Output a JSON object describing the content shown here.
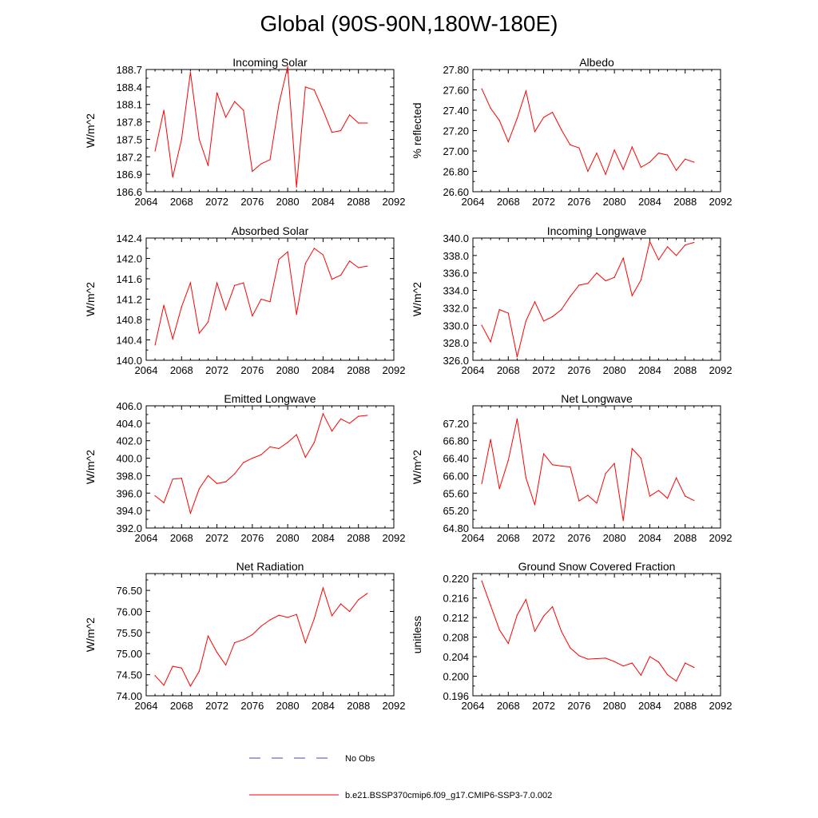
{
  "title": "Global (90S-90N,180W-180E)",
  "colors": {
    "model": "#ff0000",
    "obs": "#4a4aa8",
    "axis": "#000000"
  },
  "legend": {
    "obs_label": "No Obs",
    "model_label": "b.e21.BSSP370cmip6.f09_g17.CMIP6-SSP3-7.0.002"
  },
  "chart_data": [
    {
      "type": "line",
      "title": "Incoming Solar",
      "ylabel": "W/m^2",
      "xlim": [
        2064,
        2092
      ],
      "ylim": [
        186.6,
        188.7
      ],
      "xticks": [
        "2064",
        "2068",
        "2072",
        "2076",
        "2080",
        "2084",
        "2088",
        "2092"
      ],
      "yticks": [
        "186.6",
        "186.9",
        "187.2",
        "187.5",
        "187.8",
        "188.1",
        "188.4",
        "188.7"
      ],
      "series": [
        {
          "x": [
            2065,
            2066,
            2067,
            2068,
            2069,
            2070,
            2071,
            2072,
            2073,
            2074,
            2075,
            2076,
            2077,
            2078,
            2079,
            2080,
            2081,
            2082,
            2083,
            2084,
            2085,
            2086,
            2087,
            2088,
            2089
          ],
          "values": [
            187.3,
            188.0,
            186.85,
            187.5,
            188.65,
            187.5,
            187.05,
            188.3,
            187.88,
            188.15,
            188.0,
            186.95,
            187.08,
            187.15,
            188.1,
            188.75,
            186.68,
            188.4,
            188.35,
            188.0,
            187.62,
            187.65,
            187.92,
            187.78,
            187.78
          ]
        }
      ]
    },
    {
      "type": "line",
      "title": "Albedo",
      "ylabel": "% reflected",
      "xlim": [
        2064,
        2092
      ],
      "ylim": [
        26.6,
        27.8
      ],
      "xticks": [
        "2064",
        "2068",
        "2072",
        "2076",
        "2080",
        "2084",
        "2088",
        "2092"
      ],
      "yticks": [
        "26.60",
        "26.80",
        "27.00",
        "27.20",
        "27.40",
        "27.60",
        "27.80"
      ],
      "series": [
        {
          "x": [
            2065,
            2066,
            2067,
            2068,
            2069,
            2070,
            2071,
            2072,
            2073,
            2074,
            2075,
            2076,
            2077,
            2078,
            2079,
            2080,
            2081,
            2082,
            2083,
            2084,
            2085,
            2086,
            2087,
            2088,
            2089
          ],
          "values": [
            27.61,
            27.42,
            27.3,
            27.09,
            27.32,
            27.59,
            27.19,
            27.33,
            27.38,
            27.21,
            27.06,
            27.03,
            26.8,
            26.98,
            26.77,
            27.01,
            26.82,
            27.04,
            26.84,
            26.89,
            26.98,
            26.96,
            26.81,
            26.92,
            26.89
          ]
        }
      ]
    },
    {
      "type": "line",
      "title": "Absorbed Solar",
      "ylabel": "W/m^2",
      "xlim": [
        2064,
        2092
      ],
      "ylim": [
        140.0,
        142.4
      ],
      "xticks": [
        "2064",
        "2068",
        "2072",
        "2076",
        "2080",
        "2084",
        "2088",
        "2092"
      ],
      "yticks": [
        "140.0",
        "140.4",
        "140.8",
        "141.2",
        "141.6",
        "142.0",
        "142.4"
      ],
      "series": [
        {
          "x": [
            2065,
            2066,
            2067,
            2068,
            2069,
            2070,
            2071,
            2072,
            2073,
            2074,
            2075,
            2076,
            2077,
            2078,
            2079,
            2080,
            2081,
            2082,
            2083,
            2084,
            2085,
            2086,
            2087,
            2088,
            2089
          ],
          "values": [
            140.3,
            141.08,
            140.42,
            141.05,
            141.52,
            140.53,
            140.75,
            141.52,
            140.99,
            141.47,
            141.52,
            140.87,
            141.2,
            141.15,
            141.98,
            142.13,
            140.9,
            141.9,
            142.2,
            142.07,
            141.59,
            141.67,
            141.95,
            141.82,
            141.85
          ]
        }
      ]
    },
    {
      "type": "line",
      "title": "Incoming Longwave",
      "ylabel": "W/m^2",
      "xlim": [
        2064,
        2092
      ],
      "ylim": [
        326.0,
        340.0
      ],
      "xticks": [
        "2064",
        "2068",
        "2072",
        "2076",
        "2080",
        "2084",
        "2088",
        "2092"
      ],
      "yticks": [
        "326.0",
        "328.0",
        "330.0",
        "332.0",
        "334.0",
        "336.0",
        "338.0",
        "340.0"
      ],
      "series": [
        {
          "x": [
            2065,
            2066,
            2067,
            2068,
            2069,
            2070,
            2071,
            2072,
            2073,
            2074,
            2075,
            2076,
            2077,
            2078,
            2079,
            2080,
            2081,
            2082,
            2083,
            2084,
            2085,
            2086,
            2087,
            2088,
            2089
          ],
          "values": [
            330.0,
            328.1,
            331.8,
            331.4,
            326.4,
            330.5,
            332.7,
            330.5,
            331.0,
            331.8,
            333.3,
            334.6,
            334.8,
            336.0,
            335.1,
            335.5,
            337.7,
            333.4,
            335.2,
            339.6,
            337.5,
            339.0,
            338.0,
            339.2,
            339.5
          ]
        }
      ]
    },
    {
      "type": "line",
      "title": "Emitted Longwave",
      "ylabel": "W/m^2",
      "xlim": [
        2064,
        2092
      ],
      "ylim": [
        392.0,
        406.0
      ],
      "xticks": [
        "2064",
        "2068",
        "2072",
        "2076",
        "2080",
        "2084",
        "2088",
        "2092"
      ],
      "yticks": [
        "392.0",
        "394.0",
        "396.0",
        "398.0",
        "400.0",
        "402.0",
        "404.0",
        "406.0"
      ],
      "series": [
        {
          "x": [
            2065,
            2066,
            2067,
            2068,
            2069,
            2070,
            2071,
            2072,
            2073,
            2074,
            2075,
            2076,
            2077,
            2078,
            2079,
            2080,
            2081,
            2082,
            2083,
            2084,
            2085,
            2086,
            2087,
            2088,
            2089
          ],
          "values": [
            395.7,
            394.9,
            397.6,
            397.7,
            393.7,
            396.5,
            398.0,
            397.1,
            397.3,
            398.2,
            399.5,
            400.0,
            400.4,
            401.3,
            401.1,
            401.8,
            402.7,
            400.1,
            401.8,
            405.1,
            403.1,
            404.5,
            404.0,
            404.8,
            404.9
          ]
        }
      ]
    },
    {
      "type": "line",
      "title": "Net Longwave",
      "ylabel": "W/m^2",
      "xlim": [
        2064,
        2092
      ],
      "ylim": [
        64.8,
        67.6
      ],
      "xticks": [
        "2064",
        "2068",
        "2072",
        "2076",
        "2080",
        "2084",
        "2088",
        "2092"
      ],
      "yticks": [
        "64.80",
        "65.20",
        "65.60",
        "66.00",
        "66.40",
        "66.80",
        "67.20"
      ],
      "series": [
        {
          "x": [
            2065,
            2066,
            2067,
            2068,
            2069,
            2070,
            2071,
            2072,
            2073,
            2074,
            2075,
            2076,
            2077,
            2078,
            2079,
            2080,
            2081,
            2082,
            2083,
            2084,
            2085,
            2086,
            2087,
            2088,
            2089
          ],
          "values": [
            65.82,
            66.83,
            65.7,
            66.35,
            67.3,
            65.95,
            65.33,
            66.5,
            66.25,
            66.22,
            66.2,
            65.42,
            65.55,
            65.37,
            66.05,
            66.28,
            64.97,
            66.62,
            66.4,
            65.53,
            65.66,
            65.48,
            65.95,
            65.53,
            65.43
          ]
        }
      ]
    },
    {
      "type": "line",
      "title": "Net Radiation",
      "ylabel": "W/m^2",
      "xlim": [
        2064,
        2092
      ],
      "ylim": [
        74.0,
        76.9
      ],
      "xticks": [
        "2064",
        "2068",
        "2072",
        "2076",
        "2080",
        "2084",
        "2088",
        "2092"
      ],
      "yticks": [
        "74.00",
        "74.50",
        "75.00",
        "75.50",
        "76.00",
        "76.50"
      ],
      "series": [
        {
          "x": [
            2065,
            2066,
            2067,
            2068,
            2069,
            2070,
            2071,
            2072,
            2073,
            2074,
            2075,
            2076,
            2077,
            2078,
            2079,
            2080,
            2081,
            2082,
            2083,
            2084,
            2085,
            2086,
            2087,
            2088,
            2089
          ],
          "values": [
            74.48,
            74.25,
            74.7,
            74.66,
            74.23,
            74.58,
            75.42,
            75.03,
            74.73,
            75.26,
            75.33,
            75.45,
            75.65,
            75.8,
            75.91,
            75.86,
            75.93,
            75.26,
            75.83,
            76.56,
            75.9,
            76.18,
            76.0,
            76.28,
            76.43
          ]
        }
      ]
    },
    {
      "type": "line",
      "title": "Ground Snow Covered Fraction",
      "ylabel": "unitless",
      "xlim": [
        2064,
        2092
      ],
      "ylim": [
        0.196,
        0.221
      ],
      "xticks": [
        "2064",
        "2068",
        "2072",
        "2076",
        "2080",
        "2084",
        "2088",
        "2092"
      ],
      "yticks": [
        "0.196",
        "0.200",
        "0.204",
        "0.208",
        "0.212",
        "0.216",
        "0.220"
      ],
      "series": [
        {
          "x": [
            2065,
            2066,
            2067,
            2068,
            2069,
            2070,
            2071,
            2072,
            2073,
            2074,
            2075,
            2076,
            2077,
            2078,
            2079,
            2080,
            2081,
            2082,
            2083,
            2084,
            2085,
            2086,
            2087,
            2088,
            2089
          ],
          "values": [
            0.2195,
            0.2145,
            0.2095,
            0.2067,
            0.2125,
            0.2157,
            0.2092,
            0.2123,
            0.2142,
            0.2092,
            0.2058,
            0.2042,
            0.2035,
            0.2036,
            0.2037,
            0.203,
            0.2021,
            0.2027,
            0.2002,
            0.204,
            0.2029,
            0.2003,
            0.199,
            0.2027,
            0.2018
          ]
        }
      ]
    }
  ]
}
